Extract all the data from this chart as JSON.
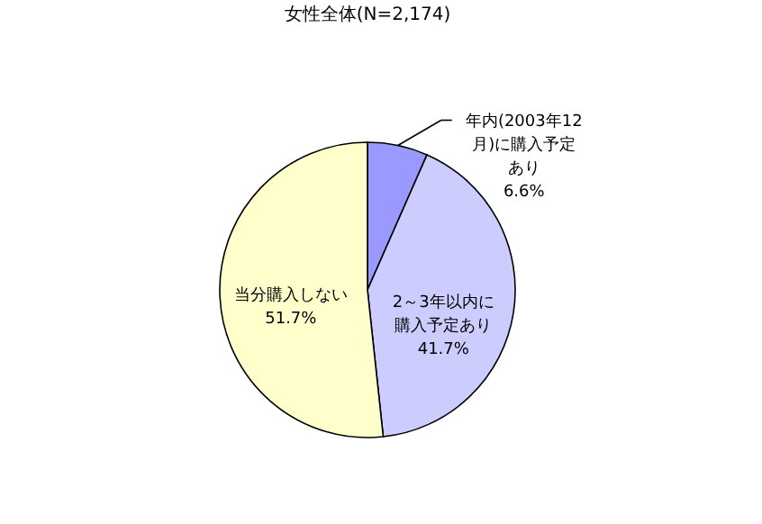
{
  "chart_data": {
    "type": "pie",
    "title": "女性全体(N=2,174)",
    "categories": [
      "年内(2003年12月)に購入予定あり",
      "2～3年以内に購入予定あり",
      "当分購入しない"
    ],
    "values": [
      6.6,
      41.7,
      51.7
    ],
    "value_labels": [
      "6.6%",
      "41.7%",
      "51.7%"
    ],
    "colors": [
      "#9999ff",
      "#ccccff",
      "#ffffcc"
    ]
  }
}
